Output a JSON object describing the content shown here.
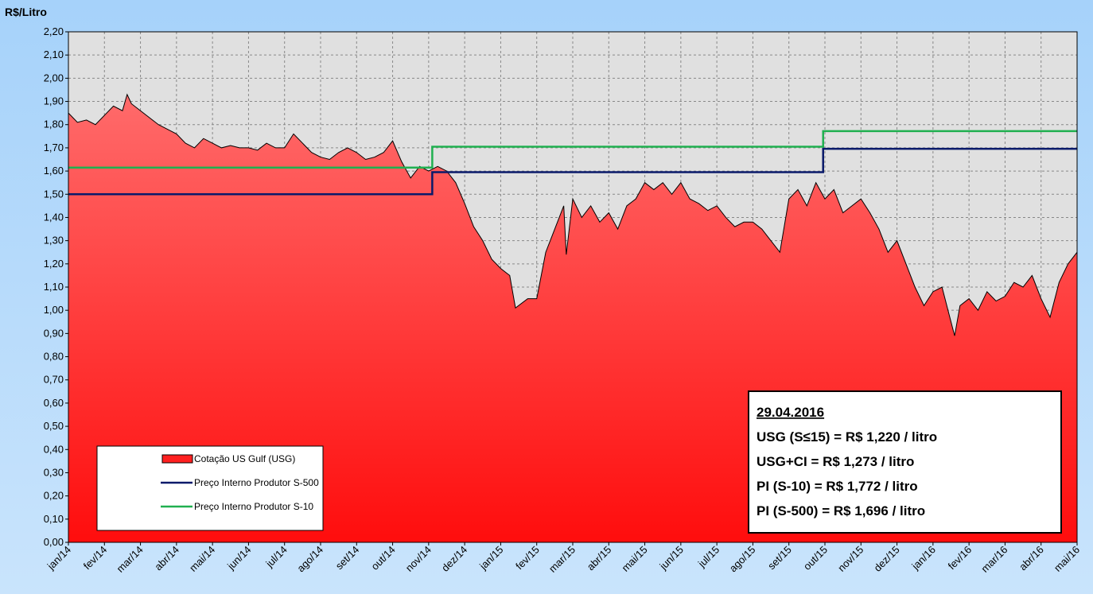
{
  "chart_data": {
    "type": "area-step",
    "y_label": "R$/Litro",
    "xlim": [
      0,
      28
    ],
    "xticks": [
      {
        "value": 0,
        "label": "jan/14"
      },
      {
        "value": 1,
        "label": "fev/14"
      },
      {
        "value": 2,
        "label": "mar/14"
      },
      {
        "value": 3,
        "label": "abr/14"
      },
      {
        "value": 4,
        "label": "mai/14"
      },
      {
        "value": 5,
        "label": "jun/14"
      },
      {
        "value": 6,
        "label": "jul/14"
      },
      {
        "value": 7,
        "label": "ago/14"
      },
      {
        "value": 8,
        "label": "set/14"
      },
      {
        "value": 9,
        "label": "out/14"
      },
      {
        "value": 10,
        "label": "nov/14"
      },
      {
        "value": 11,
        "label": "dez/14"
      },
      {
        "value": 12,
        "label": "jan/15"
      },
      {
        "value": 13,
        "label": "fev/15"
      },
      {
        "value": 14,
        "label": "mar/15"
      },
      {
        "value": 15,
        "label": "abr/15"
      },
      {
        "value": 16,
        "label": "mai/15"
      },
      {
        "value": 17,
        "label": "jun/15"
      },
      {
        "value": 18,
        "label": "jul/15"
      },
      {
        "value": 19,
        "label": "ago/15"
      },
      {
        "value": 20,
        "label": "set/15"
      },
      {
        "value": 21,
        "label": "out/15"
      },
      {
        "value": 22,
        "label": "nov/15"
      },
      {
        "value": 23,
        "label": "dez/15"
      },
      {
        "value": 24,
        "label": "jan/16"
      },
      {
        "value": 25,
        "label": "fev/16"
      },
      {
        "value": 26,
        "label": "mar/16"
      },
      {
        "value": 27,
        "label": "abr/16"
      },
      {
        "value": 28,
        "label": "mai/16"
      }
    ],
    "ylim": [
      0,
      2.2
    ],
    "yticks": [
      {
        "value": 0,
        "label": "0,00"
      },
      {
        "value": 0.1,
        "label": "0,10"
      },
      {
        "value": 0.2,
        "label": "0,20"
      },
      {
        "value": 0.3,
        "label": "0,30"
      },
      {
        "value": 0.4,
        "label": "0,40"
      },
      {
        "value": 0.5,
        "label": "0,50"
      },
      {
        "value": 0.6,
        "label": "0,60"
      },
      {
        "value": 0.7,
        "label": "0,70"
      },
      {
        "value": 0.8,
        "label": "0,80"
      },
      {
        "value": 0.9,
        "label": "0,90"
      },
      {
        "value": 1.0,
        "label": "1,00"
      },
      {
        "value": 1.1,
        "label": "1,10"
      },
      {
        "value": 1.2,
        "label": "1,20"
      },
      {
        "value": 1.3,
        "label": "1,30"
      },
      {
        "value": 1.4,
        "label": "1,40"
      },
      {
        "value": 1.5,
        "label": "1,50"
      },
      {
        "value": 1.6,
        "label": "1,60"
      },
      {
        "value": 1.7,
        "label": "1,70"
      },
      {
        "value": 1.8,
        "label": "1,80"
      },
      {
        "value": 1.9,
        "label": "1,90"
      },
      {
        "value": 2.0,
        "label": "2,00"
      },
      {
        "value": 2.1,
        "label": "2,10"
      },
      {
        "value": 2.2,
        "label": "2,20"
      }
    ],
    "grid": true,
    "legend": "lower-left",
    "series": [
      {
        "name": "Cotação US Gulf (USG)",
        "kind": "area",
        "color": "#ff2020",
        "x": [
          0,
          0.25,
          0.5,
          0.75,
          1,
          1.25,
          1.5,
          1.63,
          1.75,
          2,
          2.25,
          2.5,
          2.75,
          3,
          3.25,
          3.5,
          3.75,
          4,
          4.25,
          4.5,
          4.75,
          5,
          5.25,
          5.5,
          5.75,
          6,
          6.25,
          6.5,
          6.75,
          7,
          7.25,
          7.5,
          7.75,
          8,
          8.25,
          8.5,
          8.75,
          9,
          9.25,
          9.5,
          9.75,
          10,
          10.25,
          10.5,
          10.75,
          11,
          11.25,
          11.5,
          11.75,
          12,
          12.25,
          12.41,
          12.75,
          13,
          13.25,
          13.5,
          13.75,
          13.82,
          14,
          14.25,
          14.5,
          14.75,
          15,
          15.25,
          15.5,
          15.75,
          16,
          16.25,
          16.5,
          16.75,
          17,
          17.25,
          17.5,
          17.75,
          18,
          18.25,
          18.5,
          18.75,
          19,
          19.25,
          19.5,
          19.75,
          20,
          20.25,
          20.5,
          20.75,
          21,
          21.25,
          21.5,
          21.75,
          22,
          22.25,
          22.5,
          22.75,
          23,
          23.25,
          23.5,
          23.75,
          24,
          24.25,
          24.6,
          24.75,
          25,
          25.25,
          25.5,
          25.75,
          26,
          26.25,
          26.5,
          26.75,
          27,
          27.25,
          27.5,
          27.75,
          28
        ],
        "values": [
          1.85,
          1.81,
          1.82,
          1.8,
          1.84,
          1.88,
          1.86,
          1.93,
          1.89,
          1.86,
          1.83,
          1.8,
          1.78,
          1.76,
          1.72,
          1.7,
          1.74,
          1.72,
          1.7,
          1.71,
          1.7,
          1.7,
          1.69,
          1.72,
          1.7,
          1.7,
          1.76,
          1.72,
          1.68,
          1.66,
          1.65,
          1.68,
          1.7,
          1.68,
          1.65,
          1.66,
          1.68,
          1.73,
          1.64,
          1.57,
          1.62,
          1.6,
          1.62,
          1.6,
          1.55,
          1.46,
          1.36,
          1.3,
          1.22,
          1.18,
          1.15,
          1.01,
          1.05,
          1.05,
          1.25,
          1.35,
          1.45,
          1.24,
          1.48,
          1.4,
          1.45,
          1.38,
          1.42,
          1.35,
          1.45,
          1.48,
          1.55,
          1.52,
          1.55,
          1.5,
          1.55,
          1.48,
          1.46,
          1.43,
          1.45,
          1.4,
          1.36,
          1.38,
          1.38,
          1.35,
          1.3,
          1.25,
          1.48,
          1.52,
          1.45,
          1.55,
          1.48,
          1.52,
          1.42,
          1.45,
          1.48,
          1.42,
          1.35,
          1.25,
          1.3,
          1.2,
          1.1,
          1.02,
          1.08,
          1.1,
          0.89,
          1.02,
          1.05,
          1.0,
          1.08,
          1.04,
          1.06,
          1.12,
          1.1,
          1.15,
          1.05,
          0.97,
          1.12,
          1.2,
          1.25
        ]
      },
      {
        "name": "Preço Interno Produtor S-500",
        "kind": "line",
        "color": "#0a1a6a",
        "x": [
          0,
          10.1,
          10.1,
          20.95,
          20.95,
          28
        ],
        "values": [
          1.5,
          1.5,
          1.595,
          1.595,
          1.696,
          1.696
        ]
      },
      {
        "name": "Preço Interno Produtor S-10",
        "kind": "line",
        "color": "#20b050",
        "x": [
          0,
          10.1,
          10.1,
          20.95,
          20.95,
          28
        ],
        "values": [
          1.615,
          1.615,
          1.705,
          1.705,
          1.772,
          1.772
        ]
      }
    ],
    "annotation": [
      "29.04.2016",
      "USG (S≤15) = R$ 1,220 / litro",
      "USG+CI = R$ 1,273 / litro",
      "PI (S-10) = R$ 1,772 / litro",
      "PI (S-500) = R$ 1,696 / litro"
    ]
  }
}
